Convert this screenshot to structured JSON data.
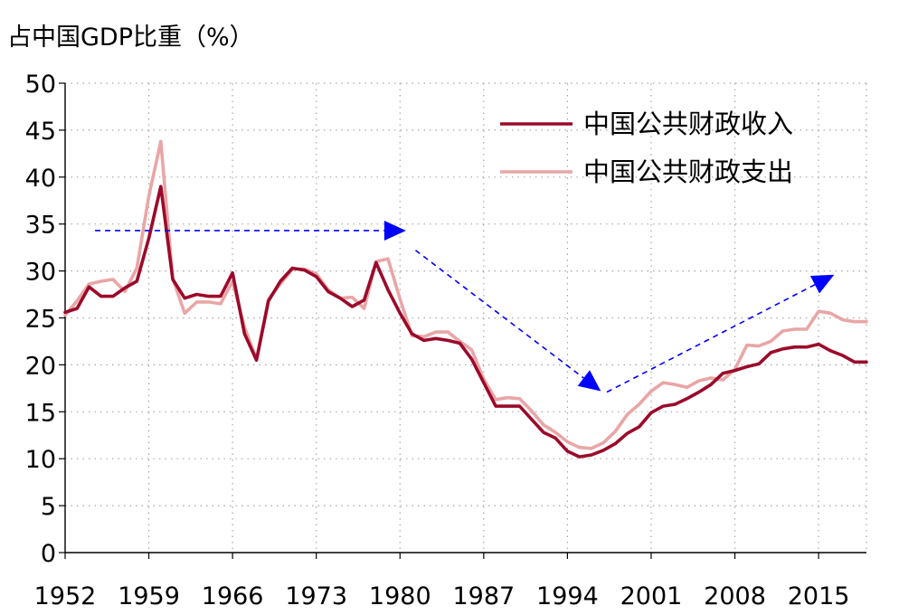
{
  "chart_data": {
    "type": "line",
    "title": "占中国GDP比重（%）",
    "xlabel": "",
    "ylabel": "",
    "xlim": [
      1952,
      2019
    ],
    "ylim": [
      0,
      50
    ],
    "x_ticks": [
      1952,
      1959,
      1966,
      1973,
      1980,
      1987,
      1994,
      2001,
      2008,
      2015
    ],
    "y_ticks": [
      0,
      5,
      10,
      15,
      20,
      25,
      30,
      35,
      40,
      45,
      50
    ],
    "grid": true,
    "legend_position": "top-right",
    "series": [
      {
        "name": "中国公共财政收入",
        "color": "#9b0a2a",
        "x": [
          1952,
          1953,
          1954,
          1955,
          1956,
          1957,
          1958,
          1959,
          1960,
          1961,
          1962,
          1963,
          1964,
          1965,
          1966,
          1967,
          1968,
          1969,
          1970,
          1971,
          1972,
          1973,
          1974,
          1975,
          1976,
          1977,
          1978,
          1979,
          1980,
          1981,
          1982,
          1983,
          1984,
          1985,
          1986,
          1987,
          1988,
          1989,
          1990,
          1991,
          1992,
          1993,
          1994,
          1995,
          1996,
          1997,
          1998,
          1999,
          2000,
          2001,
          2002,
          2003,
          2004,
          2005,
          2006,
          2007,
          2008,
          2009,
          2010,
          2011,
          2012,
          2013,
          2014,
          2015,
          2016,
          2017,
          2018,
          2019
        ],
        "y": [
          25.6,
          26.0,
          28.3,
          27.3,
          27.3,
          28.2,
          28.9,
          33.5,
          39.0,
          29.1,
          27.1,
          27.5,
          27.3,
          27.3,
          29.8,
          23.3,
          20.5,
          26.8,
          28.9,
          30.3,
          30.1,
          29.4,
          27.8,
          27.1,
          26.2,
          26.9,
          30.9,
          28.0,
          25.5,
          23.3,
          22.6,
          22.8,
          22.6,
          22.3,
          20.6,
          18.1,
          15.6,
          15.6,
          15.6,
          14.2,
          12.8,
          12.2,
          10.8,
          10.2,
          10.4,
          10.9,
          11.6,
          12.7,
          13.4,
          14.9,
          15.6,
          15.8,
          16.4,
          17.1,
          17.9,
          19.1,
          19.4,
          19.8,
          20.1,
          21.3,
          21.7,
          21.9,
          21.9,
          22.2,
          21.5,
          21.0,
          20.3,
          20.3
        ]
      },
      {
        "name": "中国公共财政支出",
        "color": "#e9a6a6",
        "x": [
          1952,
          1953,
          1954,
          1955,
          1956,
          1957,
          1958,
          1959,
          1960,
          1961,
          1962,
          1963,
          1964,
          1965,
          1966,
          1967,
          1968,
          1969,
          1970,
          1971,
          1972,
          1973,
          1974,
          1975,
          1976,
          1977,
          1978,
          1979,
          1980,
          1981,
          1982,
          1983,
          1984,
          1985,
          1986,
          1987,
          1988,
          1989,
          1990,
          1991,
          1992,
          1993,
          1994,
          1995,
          1996,
          1997,
          1998,
          1999,
          2000,
          2001,
          2002,
          2003,
          2004,
          2005,
          2006,
          2007,
          2008,
          2009,
          2010,
          2011,
          2012,
          2013,
          2014,
          2015,
          2016,
          2017,
          2018,
          2019
        ],
        "y": [
          25.3,
          26.8,
          28.6,
          28.9,
          29.1,
          27.8,
          30.3,
          38.0,
          43.8,
          29.2,
          25.5,
          26.7,
          26.7,
          26.5,
          28.9,
          24.0,
          20.6,
          27.0,
          28.6,
          30.2,
          30.2,
          29.7,
          28.0,
          27.1,
          27.2,
          26.0,
          31.0,
          31.3,
          27.0,
          23.1,
          23.0,
          23.5,
          23.5,
          22.5,
          21.6,
          18.5,
          16.3,
          16.5,
          16.4,
          15.1,
          13.6,
          12.8,
          11.8,
          11.2,
          11.1,
          11.7,
          12.9,
          14.7,
          15.8,
          17.2,
          18.1,
          17.9,
          17.6,
          18.3,
          18.6,
          18.4,
          19.5,
          22.1,
          22.0,
          22.5,
          23.6,
          23.8,
          23.8,
          25.7,
          25.5,
          24.8,
          24.6,
          24.6
        ]
      }
    ],
    "annotations": [
      {
        "type": "dashed-arrow",
        "color": "#0000ff",
        "from": [
          1954.5,
          34.3
        ],
        "to": [
          1980.5,
          34.3
        ]
      },
      {
        "type": "dashed-arrow",
        "color": "#0000ff",
        "from": [
          1981.3,
          32.2
        ],
        "to": [
          1996.8,
          17.2
        ]
      },
      {
        "type": "dashed-arrow",
        "color": "#0000ff",
        "from": [
          1997.3,
          17.1
        ],
        "to": [
          2016.3,
          29.6
        ]
      }
    ]
  }
}
